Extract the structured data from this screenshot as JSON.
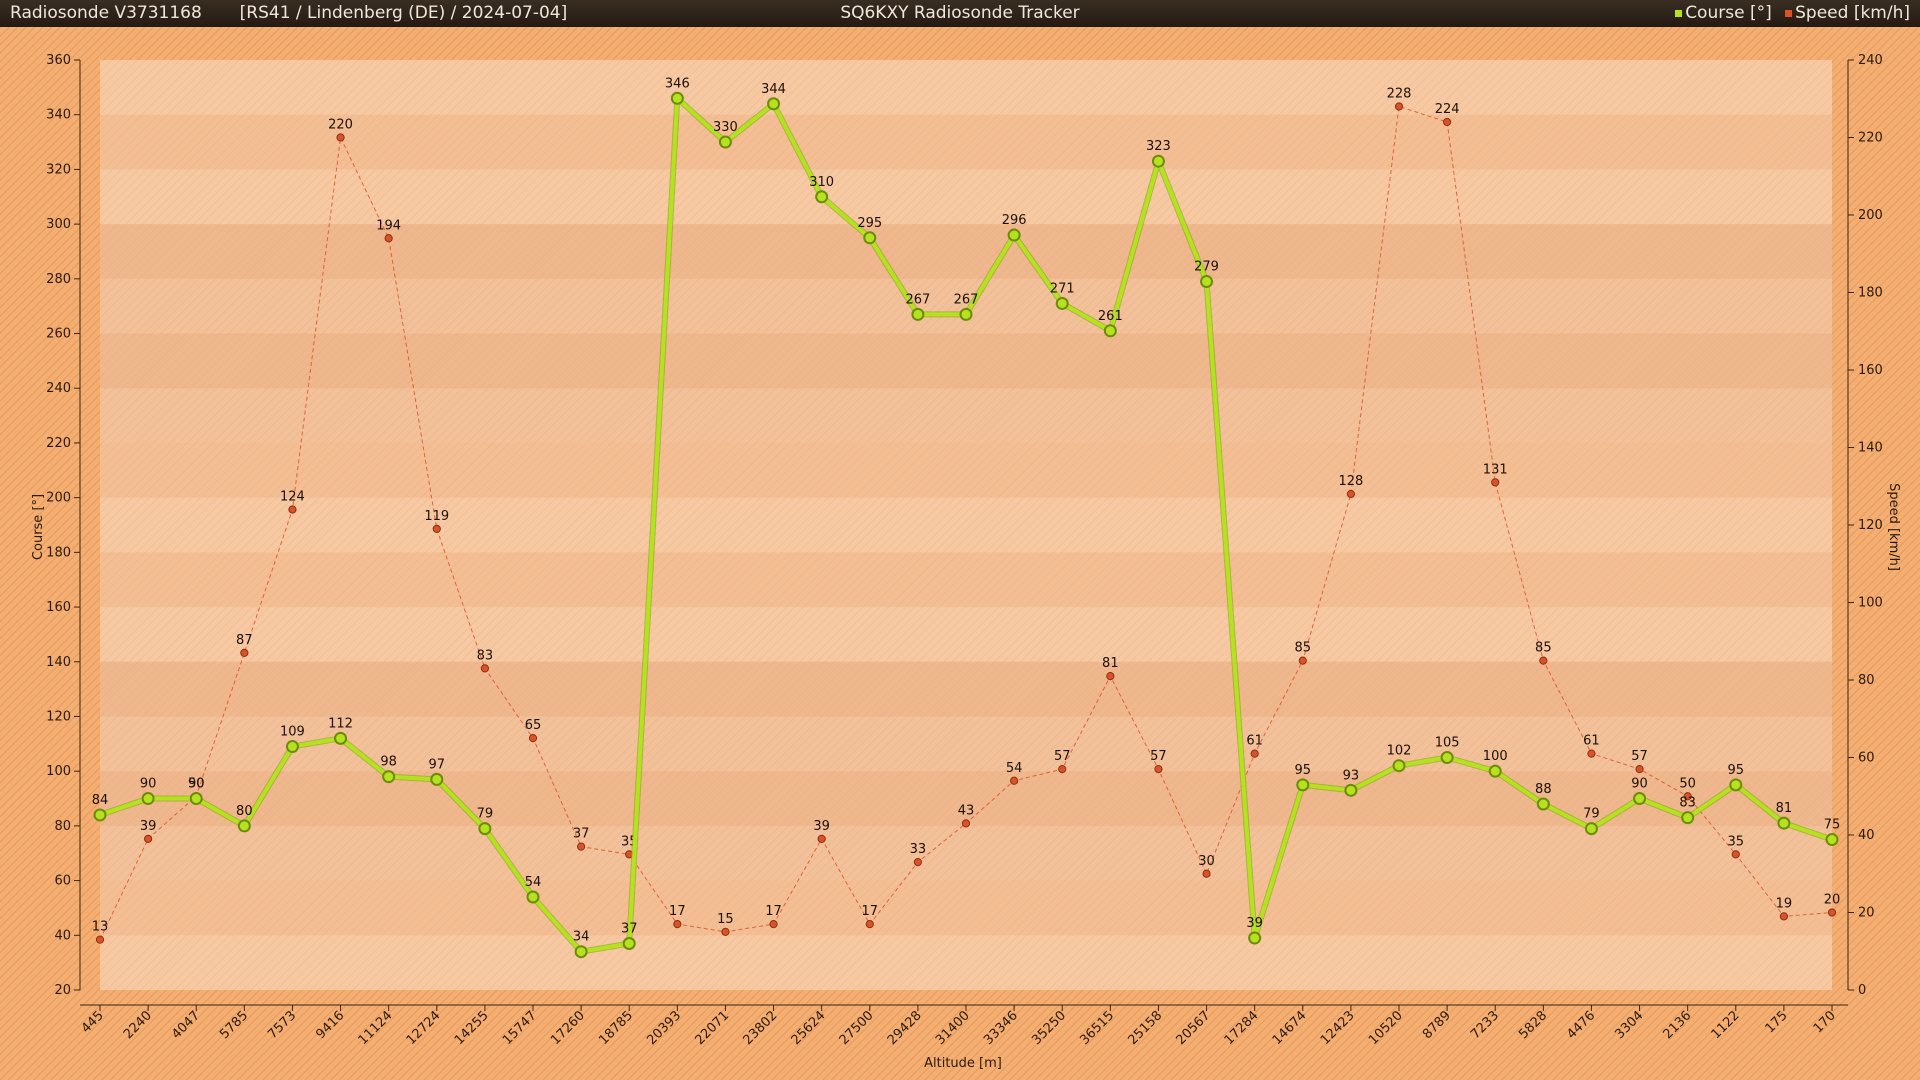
{
  "header": {
    "sonde": "Radiosonde V3731168",
    "station": "[RS41 / Lindenberg (DE) / 2024-07-04]",
    "title": "SQ6KXY Radiosonde Tracker"
  },
  "colors": {
    "course": "#b4e21e",
    "speed": "#d9532a",
    "background": "#f4ae71",
    "plot_area": "#f6c9a3"
  },
  "chart_data": {
    "type": "line",
    "xlabel": "Altitude [m]",
    "ylabel_left": "Course [°]",
    "ylabel_right": "Speed [km/h]",
    "ylim_left": [
      20,
      360
    ],
    "yticks_left_step": 20,
    "ylim_right": [
      0,
      240
    ],
    "yticks_right_step": 20,
    "grid": "horizontal bands",
    "legend_position": "top-right",
    "categories": [
      "445",
      "2240",
      "4047",
      "5785",
      "7573",
      "9416",
      "11124",
      "12724",
      "14255",
      "15747",
      "17260",
      "18785",
      "20393",
      "22071",
      "23802",
      "25624",
      "27500",
      "29428",
      "31400",
      "33346",
      "35250",
      "36515",
      "25158",
      "20567",
      "17284",
      "14674",
      "12423",
      "10520",
      "8789",
      "7233",
      "5828",
      "4476",
      "3304",
      "2136",
      "1122",
      "175",
      "170"
    ],
    "series": [
      {
        "name": "Course [°]",
        "axis": "left",
        "values": [
          84,
          90,
          90,
          80,
          109,
          112,
          98,
          97,
          79,
          54,
          34,
          37,
          346,
          330,
          344,
          310,
          295,
          267,
          267,
          296,
          271,
          261,
          323,
          279,
          39,
          95,
          93,
          102,
          105,
          100,
          88,
          79,
          90,
          83,
          95,
          81,
          75
        ]
      },
      {
        "name": "Speed [km/h]",
        "axis": "right",
        "values": [
          13,
          39,
          50,
          87,
          124,
          220,
          194,
          119,
          83,
          65,
          37,
          35,
          17,
          15,
          17,
          39,
          17,
          33,
          43,
          54,
          57,
          81,
          57,
          30,
          61,
          85,
          128,
          228,
          224,
          131,
          85,
          61,
          57,
          50,
          35,
          19,
          20
        ]
      }
    ]
  }
}
